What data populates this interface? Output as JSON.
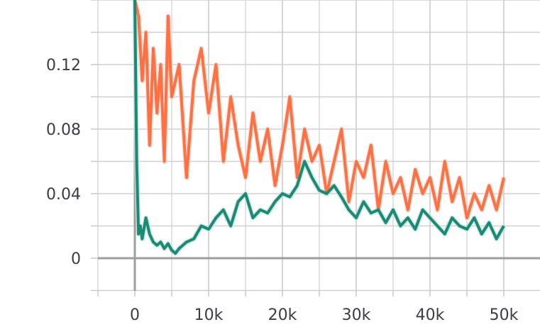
{
  "chart_data": {
    "type": "line",
    "title": "",
    "xlabel": "",
    "ylabel": "",
    "xlim": [
      -5000,
      55000
    ],
    "ylim": [
      -0.02,
      0.16
    ],
    "x_ticks": [
      0,
      10000,
      20000,
      30000,
      40000,
      50000
    ],
    "x_tick_labels": [
      "0",
      "10k",
      "20k",
      "30k",
      "40k",
      "50k"
    ],
    "y_ticks": [
      0,
      0.04,
      0.08,
      0.12
    ],
    "y_tick_labels": [
      "0",
      "0.04",
      "0.08",
      "0.12"
    ],
    "grid": true,
    "legend": "none",
    "series": [
      {
        "color": "#ff7043",
        "raw_color": "#ffd8cc",
        "x": [
          0,
          500,
          1000,
          1500,
          2000,
          2500,
          3000,
          3500,
          4000,
          4500,
          5000,
          6000,
          7000,
          8000,
          9000,
          10000,
          11000,
          12000,
          13000,
          14000,
          15000,
          16000,
          17000,
          18000,
          19000,
          20000,
          21000,
          22000,
          23000,
          24000,
          25000,
          26000,
          27000,
          28000,
          29000,
          30000,
          31000,
          32000,
          33000,
          34000,
          35000,
          36000,
          37000,
          38000,
          39000,
          40000,
          41000,
          42000,
          43000,
          44000,
          45000,
          46000,
          47000,
          48000,
          49000,
          50000
        ],
        "values": [
          0.16,
          0.15,
          0.11,
          0.14,
          0.07,
          0.13,
          0.09,
          0.12,
          0.06,
          0.15,
          0.1,
          0.12,
          0.05,
          0.11,
          0.13,
          0.09,
          0.12,
          0.06,
          0.1,
          0.07,
          0.05,
          0.09,
          0.06,
          0.08,
          0.045,
          0.07,
          0.1,
          0.05,
          0.08,
          0.06,
          0.07,
          0.04,
          0.06,
          0.08,
          0.035,
          0.06,
          0.05,
          0.07,
          0.03,
          0.06,
          0.04,
          0.05,
          0.03,
          0.055,
          0.04,
          0.05,
          0.03,
          0.06,
          0.035,
          0.05,
          0.025,
          0.04,
          0.03,
          0.045,
          0.03,
          0.05
        ]
      },
      {
        "color": "#1a8a74",
        "raw_color": "#bfe3da",
        "x": [
          0,
          250,
          500,
          750,
          1000,
          1500,
          2000,
          2500,
          3000,
          3500,
          4000,
          4500,
          5000,
          5500,
          6000,
          7000,
          8000,
          9000,
          10000,
          11000,
          12000,
          13000,
          14000,
          15000,
          16000,
          17000,
          18000,
          19000,
          20000,
          21000,
          22000,
          23000,
          24000,
          25000,
          26000,
          27000,
          28000,
          29000,
          30000,
          31000,
          32000,
          33000,
          34000,
          35000,
          36000,
          37000,
          38000,
          39000,
          40000,
          41000,
          42000,
          43000,
          44000,
          45000,
          46000,
          47000,
          48000,
          49000,
          50000
        ],
        "values": [
          0.16,
          0.06,
          0.015,
          0.02,
          0.012,
          0.025,
          0.015,
          0.01,
          0.008,
          0.01,
          0.006,
          0.009,
          0.005,
          0.003,
          0.006,
          0.01,
          0.012,
          0.02,
          0.018,
          0.025,
          0.03,
          0.02,
          0.035,
          0.04,
          0.025,
          0.03,
          0.028,
          0.035,
          0.04,
          0.038,
          0.045,
          0.06,
          0.05,
          0.042,
          0.04,
          0.045,
          0.038,
          0.03,
          0.025,
          0.035,
          0.028,
          0.03,
          0.022,
          0.03,
          0.02,
          0.025,
          0.018,
          0.03,
          0.025,
          0.02,
          0.015,
          0.025,
          0.02,
          0.018,
          0.025,
          0.015,
          0.022,
          0.012,
          0.02
        ]
      }
    ]
  }
}
